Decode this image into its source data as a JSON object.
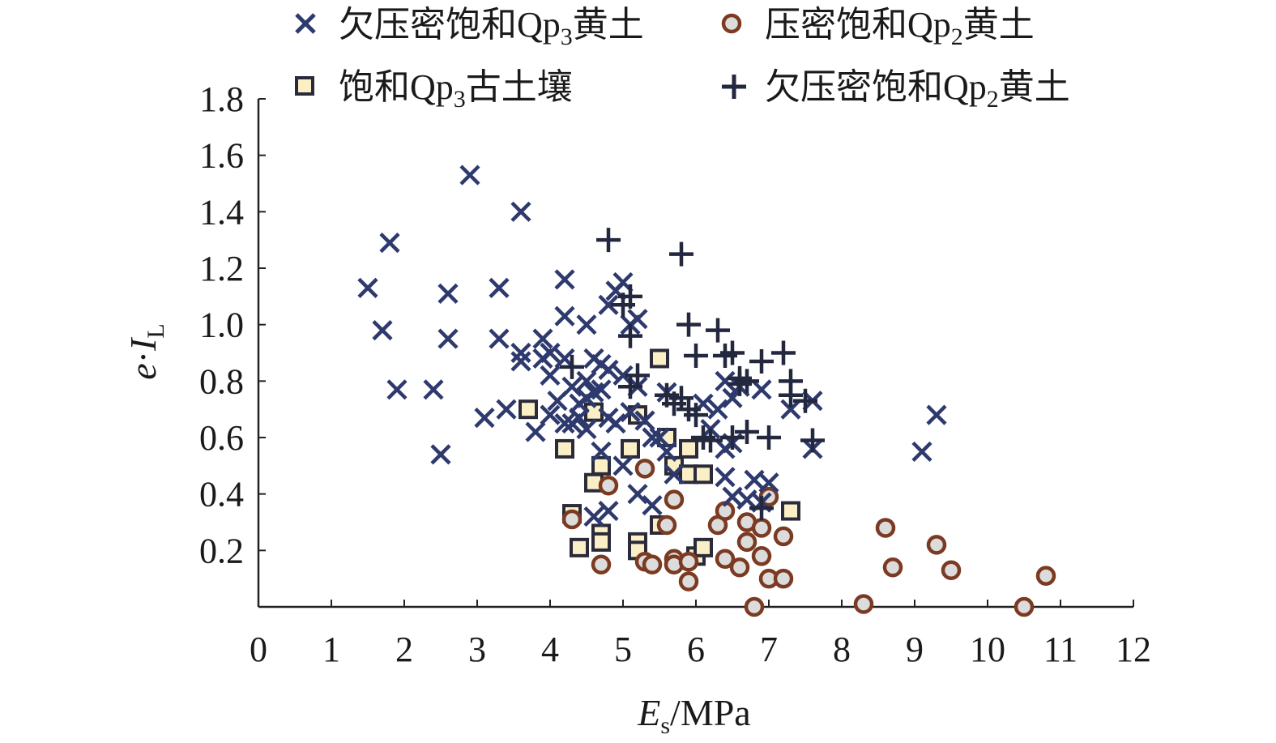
{
  "colors": {
    "x_series": "#2e3a6e",
    "circle_series_stroke": "#7b3a22",
    "circle_series_fill": "#dcdcdc",
    "square_series_stroke": "#2a2a3a",
    "square_series_fill": "#fbefc6",
    "plus_series": "#23283f",
    "axis": "#222222"
  },
  "chart_data": {
    "type": "scatter",
    "xlabel": "E",
    "xlabel_sub": "s",
    "xlabel_unit": "/MPa",
    "ylabel_e": "e",
    "ylabel_dot": "·",
    "ylabel_I": "I",
    "ylabel_sub": "L",
    "xlim": [
      0,
      12
    ],
    "ylim": [
      0,
      1.8
    ],
    "xticks": [
      "0",
      "1",
      "2",
      "3",
      "4",
      "5",
      "6",
      "7",
      "8",
      "9",
      "10",
      "11",
      "12"
    ],
    "yticks": [
      "0.2",
      "0.4",
      "0.6",
      "0.8",
      "1.0",
      "1.2",
      "1.4",
      "1.6",
      "1.8"
    ],
    "legend_position": "top",
    "series": [
      {
        "name": "欠压密饱和Qp3黄土",
        "name_parts": [
          "欠压密饱和Qp",
          "3",
          "黄土"
        ],
        "marker": "x",
        "points": [
          [
            1.5,
            1.13
          ],
          [
            1.8,
            1.29
          ],
          [
            1.7,
            0.98
          ],
          [
            1.9,
            0.77
          ],
          [
            2.4,
            0.77
          ],
          [
            2.5,
            0.54
          ],
          [
            2.6,
            1.11
          ],
          [
            2.6,
            0.95
          ],
          [
            2.9,
            1.53
          ],
          [
            3.1,
            0.67
          ],
          [
            3.3,
            1.13
          ],
          [
            3.3,
            0.95
          ],
          [
            3.4,
            0.7
          ],
          [
            3.6,
            1.4
          ],
          [
            3.6,
            0.9
          ],
          [
            3.6,
            0.87
          ],
          [
            3.8,
            0.62
          ],
          [
            3.9,
            0.95
          ],
          [
            3.9,
            0.88
          ],
          [
            4.0,
            0.9
          ],
          [
            4.0,
            0.82
          ],
          [
            4.0,
            0.68
          ],
          [
            4.1,
            0.73
          ],
          [
            4.2,
            0.65
          ],
          [
            4.2,
            1.03
          ],
          [
            4.2,
            0.88
          ],
          [
            4.2,
            1.16
          ],
          [
            4.3,
            0.78
          ],
          [
            4.3,
            0.65
          ],
          [
            4.4,
            0.72
          ],
          [
            4.4,
            0.67
          ],
          [
            4.5,
            1.0
          ],
          [
            4.5,
            0.8
          ],
          [
            4.5,
            0.63
          ],
          [
            4.5,
            0.74
          ],
          [
            4.6,
            0.88
          ],
          [
            4.6,
            0.76
          ],
          [
            4.6,
            0.32
          ],
          [
            4.7,
            0.86
          ],
          [
            4.7,
            0.77
          ],
          [
            4.7,
            0.55
          ],
          [
            4.8,
            1.07
          ],
          [
            4.8,
            0.84
          ],
          [
            4.8,
            0.67
          ],
          [
            4.8,
            0.34
          ],
          [
            4.9,
            1.12
          ],
          [
            4.9,
            0.65
          ],
          [
            5.0,
            1.15
          ],
          [
            5.0,
            0.82
          ],
          [
            5.0,
            0.5
          ],
          [
            5.1,
            1.0
          ],
          [
            5.1,
            0.69
          ],
          [
            5.2,
            1.02
          ],
          [
            5.2,
            0.78
          ],
          [
            5.2,
            0.4
          ],
          [
            5.3,
            0.66
          ],
          [
            5.4,
            0.6
          ],
          [
            5.4,
            0.36
          ],
          [
            5.5,
            0.6
          ],
          [
            5.6,
            0.76
          ],
          [
            5.6,
            0.55
          ],
          [
            5.7,
            0.47
          ],
          [
            6.1,
            0.72
          ],
          [
            6.2,
            0.63
          ],
          [
            6.3,
            0.7
          ],
          [
            6.4,
            0.8
          ],
          [
            6.4,
            0.56
          ],
          [
            6.4,
            0.46
          ],
          [
            6.5,
            0.74
          ],
          [
            6.5,
            0.58
          ],
          [
            6.5,
            0.39
          ],
          [
            6.6,
            0.78
          ],
          [
            6.7,
            0.38
          ],
          [
            6.8,
            0.45
          ],
          [
            6.9,
            0.77
          ],
          [
            6.9,
            0.37
          ],
          [
            7.0,
            0.44
          ],
          [
            7.3,
            0.7
          ],
          [
            7.6,
            0.73
          ],
          [
            7.6,
            0.56
          ],
          [
            9.1,
            0.55
          ],
          [
            9.3,
            0.68
          ]
        ]
      },
      {
        "name": "压密饱和Qp2黄土",
        "name_parts": [
          "压密饱和Qp",
          "2",
          "黄土"
        ],
        "marker": "circle",
        "points": [
          [
            4.3,
            0.31
          ],
          [
            4.7,
            0.15
          ],
          [
            4.8,
            0.43
          ],
          [
            5.3,
            0.49
          ],
          [
            5.3,
            0.16
          ],
          [
            5.4,
            0.15
          ],
          [
            5.6,
            0.29
          ],
          [
            5.7,
            0.38
          ],
          [
            5.7,
            0.17
          ],
          [
            5.7,
            0.15
          ],
          [
            5.9,
            0.09
          ],
          [
            5.9,
            0.16
          ],
          [
            6.3,
            0.29
          ],
          [
            6.4,
            0.34
          ],
          [
            6.4,
            0.17
          ],
          [
            6.6,
            0.14
          ],
          [
            6.7,
            0.3
          ],
          [
            6.7,
            0.23
          ],
          [
            6.8,
            0.0
          ],
          [
            6.9,
            0.28
          ],
          [
            6.9,
            0.18
          ],
          [
            7.0,
            0.39
          ],
          [
            7.0,
            0.1
          ],
          [
            7.2,
            0.25
          ],
          [
            7.2,
            0.1
          ],
          [
            8.3,
            0.01
          ],
          [
            8.6,
            0.28
          ],
          [
            8.7,
            0.14
          ],
          [
            9.3,
            0.22
          ],
          [
            9.5,
            0.13
          ],
          [
            10.5,
            0.0
          ],
          [
            10.8,
            0.11
          ]
        ]
      },
      {
        "name": "饱和Qp3古土壤",
        "name_parts": [
          "饱和Qp",
          "3",
          "古土壤"
        ],
        "marker": "square",
        "points": [
          [
            3.7,
            0.7
          ],
          [
            4.2,
            0.56
          ],
          [
            4.3,
            0.33
          ],
          [
            4.4,
            0.21
          ],
          [
            4.6,
            0.44
          ],
          [
            4.6,
            0.69
          ],
          [
            4.7,
            0.5
          ],
          [
            4.7,
            0.26
          ],
          [
            4.7,
            0.23
          ],
          [
            5.1,
            0.56
          ],
          [
            5.2,
            0.68
          ],
          [
            5.2,
            0.23
          ],
          [
            5.2,
            0.2
          ],
          [
            5.5,
            0.29
          ],
          [
            5.5,
            0.88
          ],
          [
            5.6,
            0.6
          ],
          [
            5.7,
            0.5
          ],
          [
            5.9,
            0.56
          ],
          [
            5.9,
            0.47
          ],
          [
            6.0,
            0.18
          ],
          [
            6.1,
            0.21
          ],
          [
            6.1,
            0.47
          ],
          [
            7.3,
            0.34
          ]
        ]
      },
      {
        "name": "欠压密饱和Qp2黄土",
        "name_parts": [
          "欠压密饱和Qp",
          "2",
          "黄土"
        ],
        "marker": "plus",
        "points": [
          [
            4.3,
            0.85
          ],
          [
            4.8,
            1.3
          ],
          [
            5.0,
            1.07
          ],
          [
            5.1,
            1.1
          ],
          [
            5.1,
            0.96
          ],
          [
            5.1,
            0.78
          ],
          [
            5.2,
            0.82
          ],
          [
            5.6,
            0.75
          ],
          [
            5.7,
            0.72
          ],
          [
            5.8,
            1.25
          ],
          [
            5.8,
            0.74
          ],
          [
            5.9,
            1.0
          ],
          [
            5.9,
            0.7
          ],
          [
            6.0,
            0.89
          ],
          [
            6.0,
            0.68
          ],
          [
            6.1,
            0.6
          ],
          [
            6.2,
            0.59
          ],
          [
            6.3,
            0.98
          ],
          [
            6.4,
            0.89
          ],
          [
            6.5,
            0.9
          ],
          [
            6.5,
            0.6
          ],
          [
            6.6,
            0.81
          ],
          [
            6.6,
            0.79
          ],
          [
            6.7,
            0.8
          ],
          [
            6.7,
            0.62
          ],
          [
            6.9,
            0.87
          ],
          [
            6.9,
            0.35
          ],
          [
            7.0,
            0.6
          ],
          [
            7.2,
            0.9
          ],
          [
            7.3,
            0.8
          ],
          [
            7.3,
            0.75
          ],
          [
            7.5,
            0.73
          ],
          [
            7.6,
            0.59
          ]
        ]
      }
    ]
  }
}
